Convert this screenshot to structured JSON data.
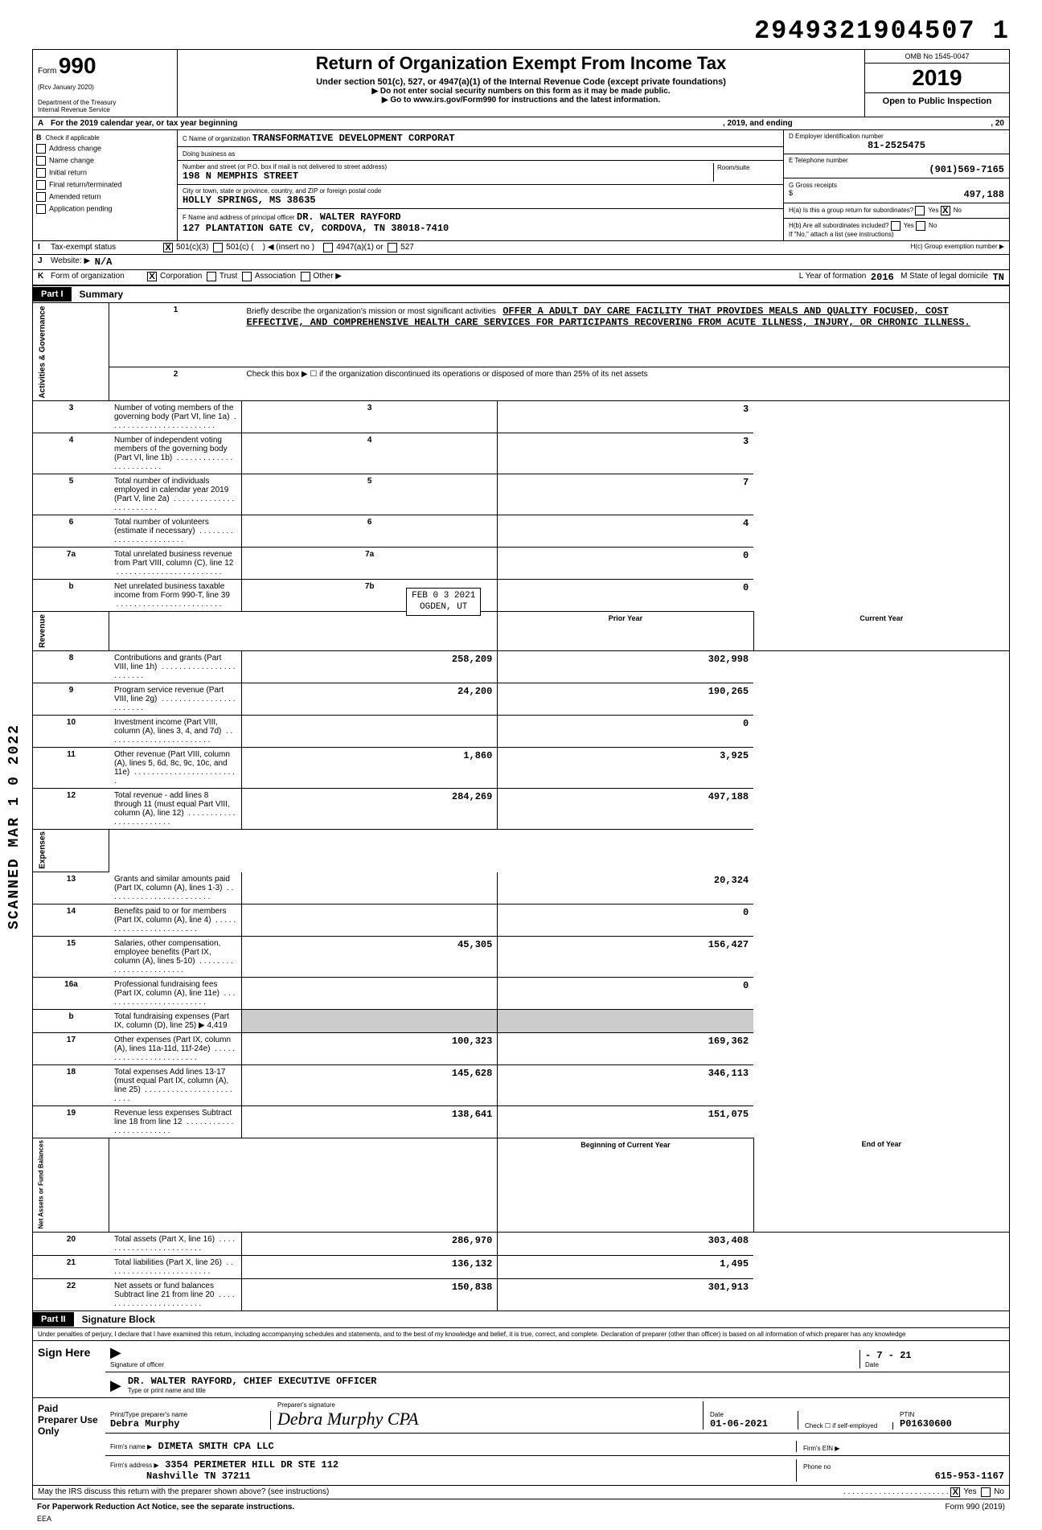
{
  "doc_number": "2949321904507 1",
  "form": {
    "number": "990",
    "rev": "(Rcv  January 2020)",
    "dept1": "Department of the Treasury",
    "dept2": "Internal Revenue Service",
    "title": "Return of Organization Exempt From Income Tax",
    "subtitle": "Under section 501(c), 527, or 4947(a)(1) of the Internal Revenue Code (except private foundations)",
    "note1": "▶ Do not enter social security numbers on this form as it may be made public.",
    "note2": "▶ Go to www.irs.gov/Form990 for instructions and the latest information.",
    "omb": "OMB No 1545-0047",
    "year": "2019",
    "inspection": "Open to Public Inspection"
  },
  "rowA": {
    "label": "A",
    "text1": "For the 2019 calendar year, or tax year beginning",
    "text2": ", 2019, and ending",
    "text3": ", 20"
  },
  "colB": {
    "label": "B",
    "check_label": "Check if applicable",
    "items": [
      "Address change",
      "Name change",
      "Initial return",
      "Final return/terminated",
      "Amended return",
      "Application pending"
    ]
  },
  "colC": {
    "name_lbl": "C  Name of organization",
    "name_val": "TRANSFORMATIVE  DEVELOPMENT  CORPORAT",
    "dba_lbl": "Doing business as",
    "street_lbl": "Number and street (or P.O. box if mail is not delivered to street address)",
    "room_lbl": "Room/suite",
    "street_val": "198  N  MEMPHIS  STREET",
    "city_lbl": "City or town, state or province, country, and ZIP or foreign postal code",
    "city_val": "HOLLY  SPRINGS,  MS  38635",
    "officer_lbl": "F  Name and address of principal officer",
    "officer_name": "DR.  WALTER  RAYFORD",
    "officer_addr": "127  PLANTATION GATE CV, CORDOVA, TN  38018-7410"
  },
  "colD": {
    "ein_lbl": "D  Employer identification number",
    "ein_val": "81-2525475",
    "tel_lbl": "E  Telephone number",
    "tel_val": "(901)569-7165",
    "gross_lbl": "G  Gross receipts",
    "gross_val": "497,188",
    "ha_lbl": "H(a) Is this a group return for subordinates?",
    "hb_lbl": "H(b) Are all subordinates included?",
    "h_note": "If \"No,\" attach a list (see instructions)",
    "hc_lbl": "H(c)  Group exemption number  ▶",
    "yes": "Yes",
    "no": "No",
    "x": "X"
  },
  "rowI": {
    "label": "I",
    "text": "Tax-exempt status",
    "opt1": "501(c)(3)",
    "opt2": "501(c) (",
    "opt2b": ")  ◀ (insert no )",
    "opt3": "4947(a)(1) or",
    "opt4": "527"
  },
  "rowJ": {
    "label": "J",
    "text": "Website: ▶",
    "val": "N/A"
  },
  "rowK": {
    "label": "K",
    "text": "Form of organization",
    "opts": [
      "Corporation",
      "Trust",
      "Association",
      "Other ▶"
    ],
    "yof_lbl": "L  Year of formation",
    "yof_val": "2016",
    "dom_lbl": "M  State of legal domicile",
    "dom_val": "TN"
  },
  "part1": {
    "lbl": "Part I",
    "title": "Summary"
  },
  "activities_lbl": "Activities & Governance",
  "revenue_lbl": "Revenue",
  "expenses_lbl": "Expenses",
  "netassets_lbl": "Net Assets or\nFund Balances",
  "line1": {
    "num": "1",
    "text": "Briefly describe the organization's mission or most significant activities",
    "val": "OFFER  A  ADULT  DAY  CARE  FACILITY  THAT  PROVIDES MEALS  AND  QUALITY  FOCUSED,  COST  EFFECTIVE,  AND  COMPREHENSIVE  HEALTH  CARE  SERVICES  FOR PARTICIPANTS  RECOVERING  FROM  ACUTE  ILLNESS,  INJURY,  OR  CHRONIC  ILLNESS."
  },
  "line2": {
    "num": "2",
    "text": "Check this box ▶ ☐ if the organization discontinued its operations or disposed of more than 25% of its net assets"
  },
  "stamp": {
    "date": "FEB 0 3 2021",
    "place": "OGDEN, UT"
  },
  "prior_hdr": "Prior Year",
  "curr_hdr": "Current Year",
  "boy_hdr": "Beginning of Current Year",
  "eoy_hdr": "End of Year",
  "rows_single": [
    {
      "n": "3",
      "t": "Number of voting members of the governing body (Part VI, line 1a)",
      "b": "3",
      "v": "3"
    },
    {
      "n": "4",
      "t": "Number of independent voting members of the governing body (Part VI, line 1b)",
      "b": "4",
      "v": "3"
    },
    {
      "n": "5",
      "t": "Total number of individuals employed in calendar year 2019 (Part V, line 2a)",
      "b": "5",
      "v": "7"
    },
    {
      "n": "6",
      "t": "Total number of volunteers (estimate if necessary)",
      "b": "6",
      "v": "4"
    },
    {
      "n": "7a",
      "t": "Total unrelated business revenue from Part VIII, column (C), line 12",
      "b": "7a",
      "v": "0"
    },
    {
      "n": "b",
      "t": "Net unrelated business taxable income from Form 990-T, line 39",
      "b": "7b",
      "v": "0"
    }
  ],
  "rows_double": [
    {
      "n": "8",
      "t": "Contributions and grants (Part VIII, line 1h)",
      "p": "258,209",
      "c": "302,998"
    },
    {
      "n": "9",
      "t": "Program service revenue (Part VIII, line 2g)",
      "p": "24,200",
      "c": "190,265"
    },
    {
      "n": "10",
      "t": "Investment income (Part VIII, column (A), lines 3, 4, and 7d)",
      "p": "",
      "c": "0"
    },
    {
      "n": "11",
      "t": "Other revenue (Part VIII, column (A), lines 5, 6d, 8c, 9c, 10c, and 11e)",
      "p": "1,860",
      "c": "3,925"
    },
    {
      "n": "12",
      "t": "Total revenue - add lines 8 through 11 (must equal Part VIII, column (A), line 12)",
      "p": "284,269",
      "c": "497,188"
    },
    {
      "n": "13",
      "t": "Grants and similar amounts paid (Part IX, column (A), lines 1-3)",
      "p": "",
      "c": "20,324"
    },
    {
      "n": "14",
      "t": "Benefits paid to or for members (Part IX, column (A), line 4)",
      "p": "",
      "c": "0"
    },
    {
      "n": "15",
      "t": "Salaries, other compensation, employee benefits (Part IX, column (A), lines 5-10)",
      "p": "45,305",
      "c": "156,427"
    },
    {
      "n": "16a",
      "t": "Professional fundraising fees (Part IX, column (A), line 11e)",
      "p": "",
      "c": "0"
    },
    {
      "n": "b",
      "t": "Total fundraising expenses (Part IX, column (D), line 25)     ▶            4,419",
      "p": "",
      "c": "",
      "shade": true
    },
    {
      "n": "17",
      "t": "Other expenses (Part IX, column (A), lines 11a-11d, 11f-24e)",
      "p": "100,323",
      "c": "169,362"
    },
    {
      "n": "18",
      "t": "Total expenses  Add lines 13-17 (must equal Part IX, column (A), line 25)",
      "p": "145,628",
      "c": "346,113"
    },
    {
      "n": "19",
      "t": "Revenue less expenses  Subtract line 18 from line 12",
      "p": "138,641",
      "c": "151,075"
    }
  ],
  "rows_balance": [
    {
      "n": "20",
      "t": "Total assets (Part X, line 16)",
      "p": "286,970",
      "c": "303,408"
    },
    {
      "n": "21",
      "t": "Total liabilities (Part X, line 26)",
      "p": "136,132",
      "c": "1,495"
    },
    {
      "n": "22",
      "t": "Net assets or fund balances  Subtract line 21 from line 20",
      "p": "150,838",
      "c": "301,913"
    }
  ],
  "part2": {
    "lbl": "Part II",
    "title": "Signature Block"
  },
  "perjury": "Under penalties of perjury, I declare that I have examined this return, including accompanying schedules and statements, and to the best of my knowledge and belief, it is true, correct, and complete. Declaration of preparer (other than officer) is based on all information of which preparer has any knowledge",
  "sign": {
    "here": "Sign Here",
    "sig_lbl": "Signature of officer",
    "date_lbl": "Date",
    "date_val": "- 7 - 21",
    "name_lbl": "Type or print name and title",
    "name_val": "DR.  WALTER  RAYFORD,  CHIEF  EXECUTIVE  OFFICER"
  },
  "paid": {
    "lbl": "Paid Preparer Use Only",
    "prep_name_lbl": "Print/Type preparer's name",
    "prep_name": "Debra Murphy",
    "prep_sig_lbl": "Preparer's signature",
    "prep_date_lbl": "Date",
    "prep_date": "01-06-2021",
    "check_lbl": "Check ☐ if self-employed",
    "ptin_lbl": "PTIN",
    "ptin": "P01630600",
    "firm_name_lbl": "Firm's name    ▶",
    "firm_name": "DIMETA  SMITH  CPA  LLC",
    "firm_ein_lbl": "Firm's EIN  ▶",
    "firm_addr_lbl": "Firm's address ▶",
    "firm_addr1": "3354  PERIMETER HILL DR  STE  112",
    "firm_addr2": "Nashville  TN  37211",
    "phone_lbl": "Phone no",
    "phone": "615-953-1167"
  },
  "discuss": {
    "text": "May the IRS discuss this return with the preparer shown above? (see instructions)",
    "yes": "Yes",
    "no": "No",
    "x": "X"
  },
  "footer": {
    "pra": "For Paperwork Reduction Act Notice, see the separate instructions.",
    "eea": "EEA",
    "form": "Form 990 (2019)"
  },
  "side_stamp": "SCANNED  MAR 1 0 2022",
  "dots": ". . . . . . . . . . . . . . . . . . . . . . . ."
}
